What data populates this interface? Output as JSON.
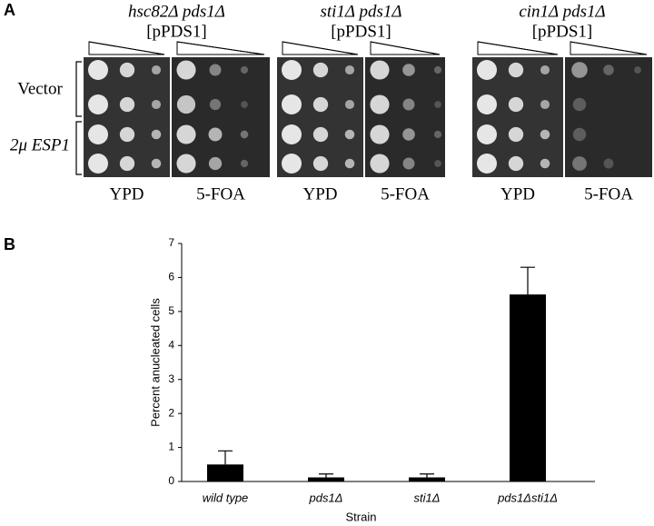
{
  "panel_a": {
    "label": "A",
    "groups": [
      {
        "title": "hsc82Δ pds1Δ",
        "plasmid": "[pPDS1]",
        "columns": [
          "YPD",
          "5-FOA"
        ]
      },
      {
        "title": "sti1Δ pds1Δ",
        "plasmid": "[pPDS1]",
        "columns": [
          "YPD",
          "5-FOA"
        ]
      },
      {
        "title": "cin1Δ pds1Δ",
        "plasmid": "[pPDS1]",
        "columns": [
          "YPD",
          "5-FOA"
        ]
      }
    ],
    "rows": [
      "Vector",
      "2μ ESP1"
    ]
  },
  "chart_data": {
    "type": "bar",
    "panel_label": "B",
    "y_label": "Percent anucleated cells",
    "x_label": "Strain",
    "categories": [
      "wild type",
      "pds1Δ",
      "sti1Δ",
      "pds1Δsti1Δ"
    ],
    "values": [
      0.5,
      0.12,
      0.12,
      5.5
    ],
    "errors": [
      0.4,
      0.1,
      0.1,
      0.8
    ],
    "color": "#000000",
    "ylim": [
      0,
      7
    ],
    "yticks": [
      0,
      1,
      2,
      3,
      4,
      5,
      6,
      7
    ]
  }
}
